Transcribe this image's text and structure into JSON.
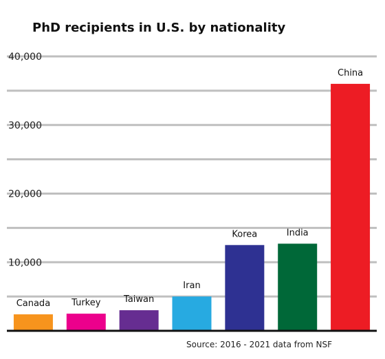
{
  "chart_data": {
    "type": "bar",
    "title": "PhD recipients in U.S. by nationality",
    "source": "Source: 2016 - 2021 data from NSF",
    "categories": [
      "Canada",
      "Turkey",
      "Taiwan",
      "Iran",
      "Korea",
      "India",
      "China"
    ],
    "values": [
      2400,
      2500,
      3000,
      5000,
      12500,
      12700,
      36000
    ],
    "colors": [
      "#f7941d",
      "#ec008c",
      "#662d91",
      "#27aae1",
      "#2e3192",
      "#006838",
      "#ed1c24"
    ],
    "ylim": [
      0,
      40000
    ],
    "yticks": [
      10000,
      20000,
      30000,
      40000
    ],
    "ytick_labels": [
      "10,000",
      "20,000",
      "30,000",
      "40,000"
    ],
    "gridline_color": "#bfbfbf",
    "grid": true
  }
}
